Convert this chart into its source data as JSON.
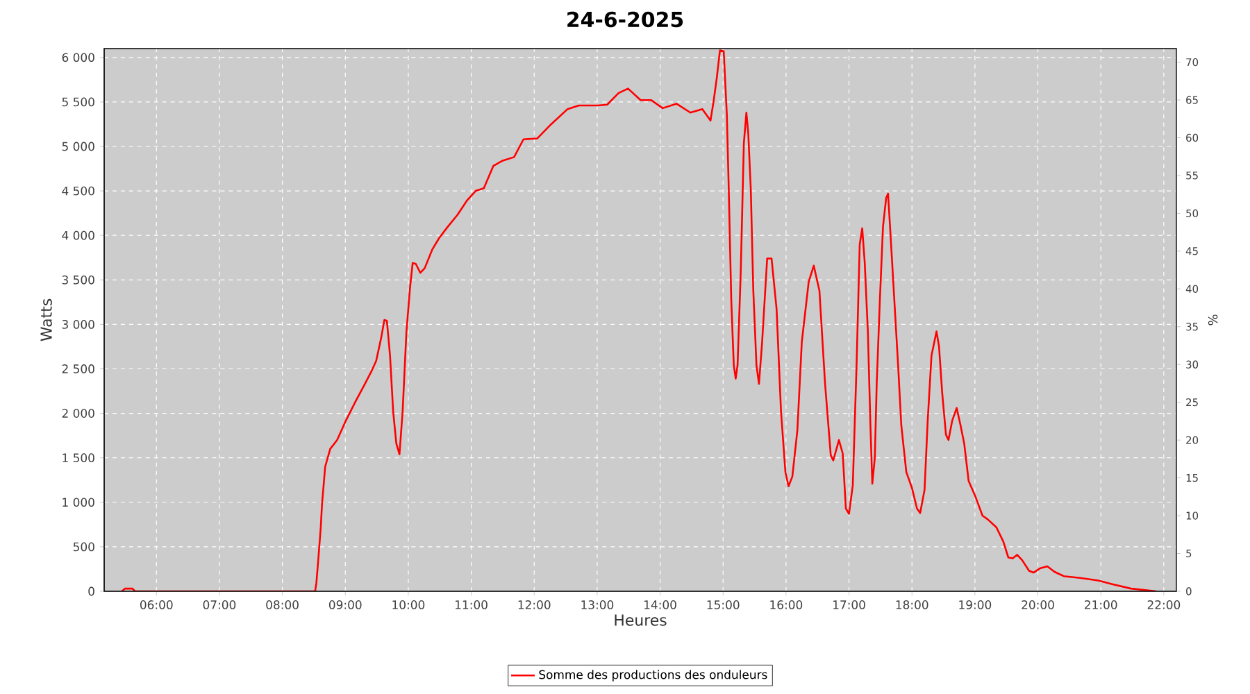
{
  "chart_data": {
    "type": "line",
    "title": "24-6-2025",
    "xlabel": "Heures",
    "ylabel": "Watts",
    "y2label": "%",
    "xlim": [
      5.17,
      22.2
    ],
    "xticks": [
      {
        "value": 6,
        "label": "06:00"
      },
      {
        "value": 7,
        "label": "07:00"
      },
      {
        "value": 8,
        "label": "08:00"
      },
      {
        "value": 9,
        "label": "09:00"
      },
      {
        "value": 10,
        "label": "10:00"
      },
      {
        "value": 11,
        "label": "11:00"
      },
      {
        "value": 12,
        "label": "12:00"
      },
      {
        "value": 13,
        "label": "13:00"
      },
      {
        "value": 14,
        "label": "14:00"
      },
      {
        "value": 15,
        "label": "15:00"
      },
      {
        "value": 16,
        "label": "16:00"
      },
      {
        "value": 17,
        "label": "17:00"
      },
      {
        "value": 18,
        "label": "18:00"
      },
      {
        "value": 19,
        "label": "19:00"
      },
      {
        "value": 20,
        "label": "20:00"
      },
      {
        "value": 21,
        "label": "21:00"
      },
      {
        "value": 22,
        "label": "22:00"
      }
    ],
    "ylim": [
      0,
      6100
    ],
    "yticks": [
      0,
      500,
      {
        "value": 1000,
        "label": "1 000"
      },
      {
        "value": 1500,
        "label": "1 500"
      },
      {
        "value": 2000,
        "label": "2 000"
      },
      {
        "value": 2500,
        "label": "2 500"
      },
      {
        "value": 3000,
        "label": "3 000"
      },
      {
        "value": 3500,
        "label": "3 500"
      },
      {
        "value": 4000,
        "label": "4 000"
      },
      {
        "value": 4500,
        "label": "4 500"
      },
      {
        "value": 5000,
        "label": "5 000"
      },
      {
        "value": 5500,
        "label": "5 500"
      },
      {
        "value": 6000,
        "label": "6 000"
      }
    ],
    "y2lim": [
      0,
      71.8
    ],
    "y2ticks": [
      0,
      5,
      10,
      15,
      20,
      25,
      30,
      35,
      40,
      45,
      50,
      55,
      60,
      65,
      70
    ],
    "grid": true,
    "legend": "bottom",
    "marker": "none",
    "line_style": "solid",
    "series": [
      {
        "name": "Somme des productions des onduleurs",
        "color": "#ff0000",
        "x": [
          5.45,
          5.5,
          5.62,
          5.66,
          8.52,
          8.54,
          8.57,
          8.61,
          8.63,
          8.68,
          8.76,
          8.87,
          9.01,
          9.16,
          9.31,
          9.42,
          9.49,
          9.57,
          9.62,
          9.66,
          9.71,
          9.76,
          9.81,
          9.86,
          9.91,
          9.97,
          10.03,
          10.07,
          10.12,
          10.19,
          10.26,
          10.38,
          10.49,
          10.63,
          10.78,
          10.93,
          11.07,
          11.2,
          11.35,
          11.5,
          11.68,
          11.83,
          12.05,
          12.27,
          12.53,
          12.71,
          13.01,
          13.16,
          13.34,
          13.49,
          13.69,
          13.86,
          14.04,
          14.26,
          14.48,
          14.67,
          14.74,
          14.8,
          14.85,
          14.9,
          14.95,
          15.01,
          15.06,
          15.09,
          15.13,
          15.17,
          15.2,
          15.23,
          15.28,
          15.33,
          15.37,
          15.4,
          15.44,
          15.48,
          15.53,
          15.57,
          15.62,
          15.7,
          15.77,
          15.85,
          15.92,
          15.99,
          16.04,
          16.1,
          16.18,
          16.25,
          16.36,
          16.44,
          16.53,
          16.62,
          16.71,
          16.75,
          16.84,
          16.9,
          16.95,
          17.0,
          17.06,
          17.12,
          17.17,
          17.21,
          17.25,
          17.3,
          17.34,
          17.37,
          17.41,
          17.44,
          17.49,
          17.54,
          17.59,
          17.62,
          17.66,
          17.72,
          17.78,
          17.83,
          17.91,
          18.0,
          18.08,
          18.13,
          18.2,
          18.25,
          18.31,
          18.39,
          18.43,
          18.48,
          18.54,
          18.58,
          18.64,
          18.71,
          18.77,
          18.83,
          18.9,
          19.01,
          19.12,
          19.2,
          19.34,
          19.45,
          19.53,
          19.6,
          19.67,
          19.75,
          19.86,
          19.93,
          20.04,
          20.15,
          20.26,
          20.41,
          20.67,
          20.96,
          21.18,
          21.48,
          21.88
        ],
        "values": [
          0,
          30,
          30,
          0,
          0,
          90,
          350,
          720,
          980,
          1400,
          1600,
          1700,
          1920,
          2130,
          2330,
          2480,
          2590,
          2850,
          3050,
          3040,
          2650,
          2020,
          1660,
          1540,
          2020,
          2910,
          3430,
          3690,
          3680,
          3580,
          3630,
          3840,
          3970,
          4100,
          4230,
          4390,
          4500,
          4530,
          4780,
          4840,
          4880,
          5080,
          5090,
          5250,
          5420,
          5460,
          5460,
          5470,
          5600,
          5650,
          5520,
          5520,
          5430,
          5480,
          5380,
          5420,
          5350,
          5290,
          5510,
          5770,
          6080,
          6070,
          5350,
          4520,
          3270,
          2540,
          2390,
          2540,
          3580,
          5040,
          5380,
          5150,
          4520,
          3380,
          2540,
          2330,
          2800,
          3740,
          3740,
          3170,
          2020,
          1340,
          1180,
          1290,
          1810,
          2800,
          3480,
          3660,
          3380,
          2330,
          1530,
          1470,
          1700,
          1550,
          930,
          870,
          1190,
          2540,
          3900,
          4080,
          3690,
          2910,
          1870,
          1210,
          1500,
          2330,
          3270,
          4100,
          4420,
          4470,
          4000,
          3270,
          2540,
          1870,
          1340,
          1160,
          930,
          880,
          1140,
          1920,
          2650,
          2920,
          2750,
          2230,
          1760,
          1700,
          1920,
          2060,
          1870,
          1660,
          1240,
          1060,
          850,
          810,
          720,
          560,
          380,
          370,
          410,
          350,
          230,
          210,
          260,
          280,
          220,
          170,
          150,
          120,
          80,
          30,
          0
        ]
      }
    ]
  }
}
